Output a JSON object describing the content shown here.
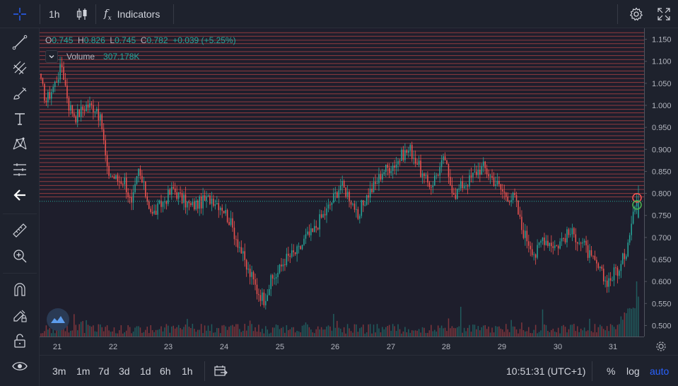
{
  "toolbar": {
    "interval": "1h",
    "indicators_label": "Indicators",
    "chart_type_icon": "candles-icon",
    "indicators_icon": "fx-icon",
    "settings_icon": "gear-icon",
    "fullscreen_icon": "fullscreen-icon"
  },
  "left_tools": [
    "crosshair-icon",
    "trend-line-icon",
    "pitchfork-icon",
    "brush-icon",
    "text-icon",
    "pattern-icon",
    "prediction-icon",
    "back-arrow-icon",
    "ruler-icon",
    "zoom-in-icon",
    "magnet-icon",
    "lock-drawings-icon",
    "unlock-icon",
    "eye-icon"
  ],
  "legend": {
    "o_key": "O",
    "o_val": "0.745",
    "h_key": "H",
    "h_val": "0.826",
    "l_key": "L",
    "l_val": "0.745",
    "c_key": "C",
    "c_val": "0.782",
    "change": "+0.039 (+5.25%)",
    "volume_label": "Volume",
    "volume_value": "307.178K"
  },
  "bottom_bar": {
    "ranges": [
      "3m",
      "1m",
      "7d",
      "3d",
      "1d",
      "6h",
      "1h"
    ],
    "goto_icon": "calendar-goto-icon",
    "time": "10:51:31 (UTC+1)",
    "percent": "%",
    "log": "log",
    "auto": "auto"
  },
  "colors": {
    "up": "#26a69a",
    "down": "#ef5350",
    "background": "#1e1e2c",
    "panel": "#1e222d",
    "hline": "#ef5350",
    "last_price_line": "#26a69a",
    "accent": "#2962ff"
  },
  "chart_data": {
    "type": "candlestick",
    "interval": "1h",
    "y_ticks": [
      "1.150",
      "1.100",
      "1.050",
      "1.000",
      "0.950",
      "0.900",
      "0.850",
      "0.800",
      "0.750",
      "0.700",
      "0.650",
      "0.600",
      "0.550",
      "0.500"
    ],
    "ylim": [
      0.475,
      1.175
    ],
    "x_ticks": [
      "21",
      "22",
      "23",
      "24",
      "25",
      "26",
      "27",
      "28",
      "29",
      "30",
      "31"
    ],
    "last_price": "0.782",
    "anchors": [
      [
        0,
        1.05
      ],
      [
        3,
        1.01
      ],
      [
        8,
        1.05
      ],
      [
        12,
        1.09
      ],
      [
        16,
        1.0
      ],
      [
        20,
        0.975
      ],
      [
        26,
        1.0
      ],
      [
        32,
        0.995
      ],
      [
        35,
        0.95
      ],
      [
        38,
        0.85
      ],
      [
        44,
        0.83
      ],
      [
        48,
        0.83
      ],
      [
        52,
        0.77
      ],
      [
        56,
        0.85
      ],
      [
        60,
        0.8
      ],
      [
        64,
        0.75
      ],
      [
        70,
        0.78
      ],
      [
        76,
        0.81
      ],
      [
        80,
        0.79
      ],
      [
        86,
        0.77
      ],
      [
        92,
        0.78
      ],
      [
        98,
        0.79
      ],
      [
        104,
        0.77
      ],
      [
        108,
        0.74
      ],
      [
        110,
        0.72
      ],
      [
        114,
        0.68
      ],
      [
        118,
        0.63
      ],
      [
        121,
        0.61
      ],
      [
        124,
        0.58
      ],
      [
        128,
        0.56
      ],
      [
        132,
        0.6
      ],
      [
        136,
        0.62
      ],
      [
        140,
        0.65
      ],
      [
        144,
        0.66
      ],
      [
        148,
        0.67
      ],
      [
        152,
        0.7
      ],
      [
        156,
        0.71
      ],
      [
        160,
        0.74
      ],
      [
        164,
        0.76
      ],
      [
        168,
        0.79
      ],
      [
        172,
        0.82
      ],
      [
        176,
        0.8
      ],
      [
        180,
        0.77
      ],
      [
        182,
        0.73
      ],
      [
        184,
        0.77
      ],
      [
        188,
        0.8
      ],
      [
        192,
        0.82
      ],
      [
        196,
        0.85
      ],
      [
        200,
        0.86
      ],
      [
        204,
        0.87
      ],
      [
        208,
        0.89
      ],
      [
        212,
        0.9
      ],
      [
        216,
        0.87
      ],
      [
        220,
        0.83
      ],
      [
        224,
        0.82
      ],
      [
        228,
        0.85
      ],
      [
        232,
        0.88
      ],
      [
        234,
        0.83
      ],
      [
        238,
        0.8
      ],
      [
        242,
        0.82
      ],
      [
        246,
        0.83
      ],
      [
        250,
        0.85
      ],
      [
        254,
        0.86
      ],
      [
        258,
        0.84
      ],
      [
        262,
        0.82
      ],
      [
        266,
        0.8
      ],
      [
        270,
        0.79
      ],
      [
        272,
        0.79
      ],
      [
        276,
        0.72
      ],
      [
        280,
        0.69
      ],
      [
        284,
        0.66
      ],
      [
        288,
        0.7
      ],
      [
        292,
        0.69
      ],
      [
        296,
        0.68
      ],
      [
        300,
        0.7
      ],
      [
        304,
        0.71
      ],
      [
        308,
        0.7
      ],
      [
        312,
        0.68
      ],
      [
        316,
        0.65
      ],
      [
        320,
        0.63
      ],
      [
        324,
        0.6
      ],
      [
        328,
        0.61
      ],
      [
        330,
        0.63
      ],
      [
        332,
        0.62
      ],
      [
        334,
        0.65
      ],
      [
        336,
        0.67
      ],
      [
        338,
        0.72
      ],
      [
        340,
        0.76
      ],
      [
        342,
        0.782
      ]
    ],
    "hlines": [
      1.165,
      1.157,
      1.148,
      1.14,
      1.131,
      1.122,
      1.113,
      1.104,
      1.095,
      1.087,
      1.078,
      1.07,
      1.061,
      1.052,
      1.043,
      1.035,
      1.026,
      1.017,
      1.008,
      1.0,
      0.991,
      0.983,
      0.974,
      0.965,
      0.957,
      0.948,
      0.94,
      0.931,
      0.922,
      0.914,
      0.905,
      0.896,
      0.887,
      0.879,
      0.87,
      0.861,
      0.853,
      0.844,
      0.836,
      0.827,
      0.818,
      0.809,
      0.8,
      0.792
    ]
  }
}
